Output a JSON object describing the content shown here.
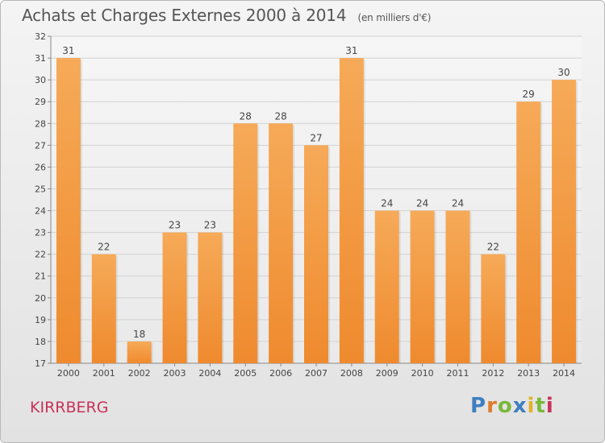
{
  "chart_data": {
    "type": "bar",
    "title": "Achats et Charges Externes 2000 à 2014",
    "subtitle": "(en milliers d'€)",
    "categories": [
      "2000",
      "2001",
      "2002",
      "2003",
      "2004",
      "2005",
      "2006",
      "2007",
      "2008",
      "2009",
      "2010",
      "2011",
      "2012",
      "2013",
      "2014"
    ],
    "values": [
      31,
      22,
      18,
      23,
      23,
      28,
      28,
      27,
      31,
      24,
      24,
      24,
      22,
      29,
      30
    ],
    "ylim": [
      17,
      32
    ],
    "yticks": [
      17,
      18,
      19,
      20,
      21,
      22,
      23,
      24,
      25,
      26,
      27,
      28,
      29,
      30,
      31,
      32
    ],
    "grid": true,
    "bar_color": "#ef8a2e",
    "bar_color_light": "#f6aa58",
    "xlabel": "",
    "ylabel": ""
  },
  "footer": {
    "commune": "KIRRBERG",
    "logo_text": "Proxiti",
    "logo_colors": [
      "#3e7fc1",
      "#e07a2a",
      "#79b83a",
      "#3e7fc1",
      "#e0b22a",
      "#79b83a",
      "#c8325a"
    ]
  }
}
